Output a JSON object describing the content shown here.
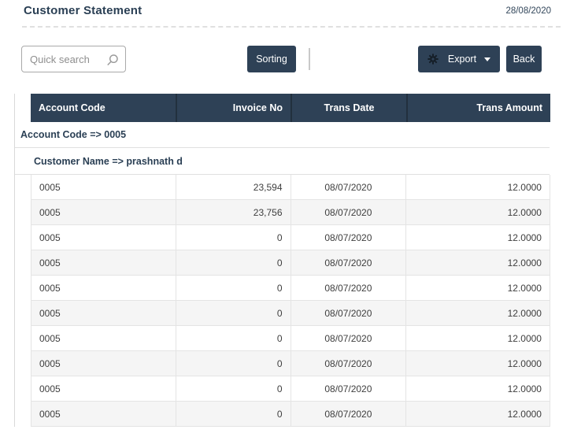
{
  "page": {
    "title": "Customer Statement",
    "date": "28/08/2020"
  },
  "toolbar": {
    "search_placeholder": "Quick search",
    "search_icon": "magnifier",
    "sorting_label": "Sorting",
    "export_label": "Export",
    "export_icon": "gear",
    "export_caret": "caret-down",
    "back_label": "Back"
  },
  "colors": {
    "accent_navy": "#2e4156",
    "title_text": "#2a3f54",
    "header_separator": "#22303e",
    "row_alt": "#f5f5f5",
    "cell_border": "#e4e4e4",
    "toolbar_divider": "#c9c9c9"
  },
  "table": {
    "group_account": "Account Code => 0005",
    "group_customer": "Customer Name => prashnath d",
    "columns": [
      {
        "key": "account_code",
        "label": "Account Code",
        "align": "left"
      },
      {
        "key": "invoice_no",
        "label": "Invoice No",
        "align": "right"
      },
      {
        "key": "trans_date",
        "label": "Trans Date",
        "align": "center"
      },
      {
        "key": "trans_amount",
        "label": "Trans Amount",
        "align": "right"
      }
    ],
    "rows": [
      {
        "account_code": "0005",
        "invoice_no": "23,594",
        "trans_date": "08/07/2020",
        "trans_amount": "12.0000"
      },
      {
        "account_code": "0005",
        "invoice_no": "23,756",
        "trans_date": "08/07/2020",
        "trans_amount": "12.0000"
      },
      {
        "account_code": "0005",
        "invoice_no": "0",
        "trans_date": "08/07/2020",
        "trans_amount": "12.0000"
      },
      {
        "account_code": "0005",
        "invoice_no": "0",
        "trans_date": "08/07/2020",
        "trans_amount": "12.0000"
      },
      {
        "account_code": "0005",
        "invoice_no": "0",
        "trans_date": "08/07/2020",
        "trans_amount": "12.0000"
      },
      {
        "account_code": "0005",
        "invoice_no": "0",
        "trans_date": "08/07/2020",
        "trans_amount": "12.0000"
      },
      {
        "account_code": "0005",
        "invoice_no": "0",
        "trans_date": "08/07/2020",
        "trans_amount": "12.0000"
      },
      {
        "account_code": "0005",
        "invoice_no": "0",
        "trans_date": "08/07/2020",
        "trans_amount": "12.0000"
      },
      {
        "account_code": "0005",
        "invoice_no": "0",
        "trans_date": "08/07/2020",
        "trans_amount": "12.0000"
      },
      {
        "account_code": "0005",
        "invoice_no": "0",
        "trans_date": "08/07/2020",
        "trans_amount": "12.0000"
      }
    ]
  }
}
